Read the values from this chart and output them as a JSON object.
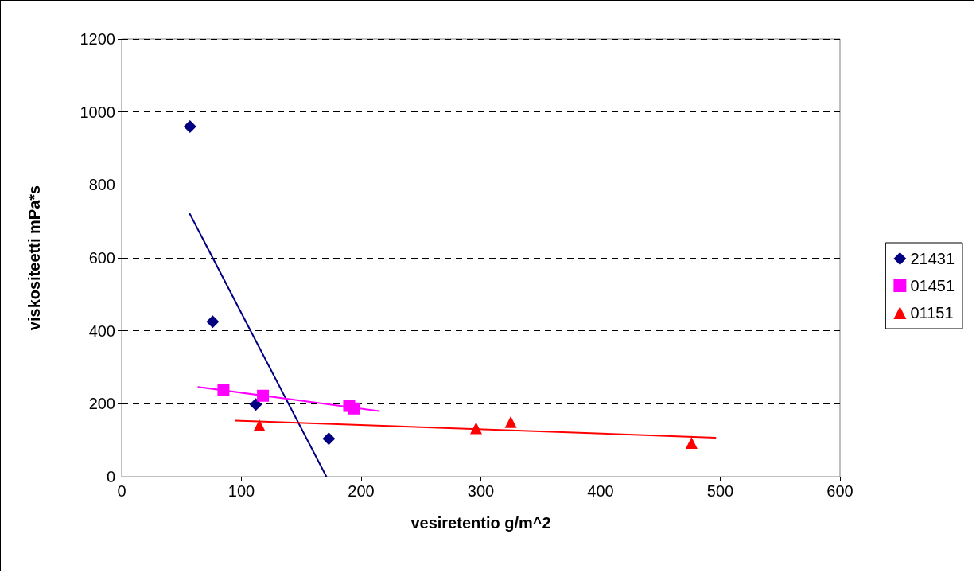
{
  "chart_data": {
    "type": "scatter",
    "xlabel": "vesiretentio g/m^2",
    "ylabel": "viskositeetti mPa*s",
    "xlim": [
      0,
      600
    ],
    "xticks": [
      0,
      100,
      200,
      300,
      400,
      500,
      600
    ],
    "ylim": [
      0,
      1200
    ],
    "yticks": [
      0,
      200,
      400,
      600,
      800,
      1000,
      1200
    ],
    "grid": "y",
    "legend": "right",
    "series": [
      {
        "name": "21431",
        "marker": "diamond",
        "color": "#000080",
        "x": [
          57,
          76,
          112,
          173
        ],
        "values": [
          960,
          425,
          198,
          104
        ]
      },
      {
        "name": "01451",
        "marker": "square",
        "color": "#ff00ff",
        "x": [
          85,
          118,
          190,
          194
        ],
        "values": [
          237,
          222,
          194,
          187
        ]
      },
      {
        "name": "01151",
        "marker": "triangle",
        "color": "#ff0000",
        "x": [
          115,
          296,
          325,
          476
        ],
        "values": [
          141,
          133,
          150,
          93
        ]
      },
      {
        "type": "line",
        "color": "#000080",
        "x": [
          57,
          171
        ],
        "values": [
          720,
          0
        ]
      },
      {
        "type": "line",
        "color": "#ff00ff",
        "x": [
          64,
          215
        ],
        "values": [
          246,
          180
        ]
      },
      {
        "type": "line",
        "color": "#ff0000",
        "x": [
          95,
          496
        ],
        "values": [
          154,
          107
        ]
      }
    ]
  }
}
